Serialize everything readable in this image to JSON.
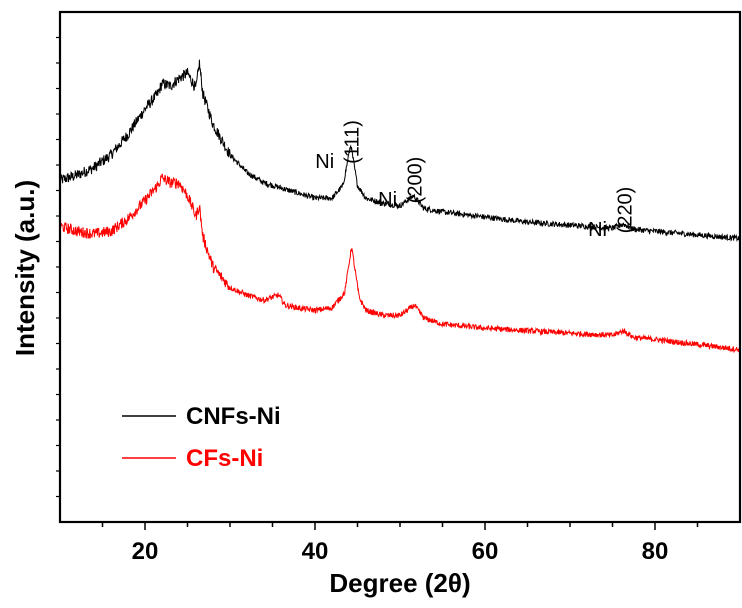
{
  "chart_data": {
    "type": "line",
    "xlabel": "Degree (2θ)",
    "ylabel": "Intensity (a.u.)",
    "xlim": [
      10,
      90
    ],
    "ylim": [
      0,
      100
    ],
    "y_ticks_labeled": false,
    "x_ticks": [
      20,
      40,
      60,
      80
    ],
    "x_tick_labels": [
      "20",
      "40",
      "60",
      "80"
    ],
    "legend": {
      "placement": "bottom-left"
    },
    "series": [
      {
        "name": "CNFs-Ni",
        "color": "#000000",
        "points": [
          [
            10,
            67
          ],
          [
            12,
            68
          ],
          [
            14,
            69.5
          ],
          [
            16,
            72
          ],
          [
            18,
            76
          ],
          [
            20,
            81
          ],
          [
            21.5,
            84
          ],
          [
            22,
            86
          ],
          [
            23,
            85.5
          ],
          [
            24,
            87
          ],
          [
            25,
            88
          ],
          [
            26,
            85
          ],
          [
            26.4,
            90
          ],
          [
            26.8,
            84
          ],
          [
            28,
            78
          ],
          [
            30,
            72
          ],
          [
            32,
            68.5
          ],
          [
            34,
            66.5
          ],
          [
            36,
            65.5
          ],
          [
            38,
            64.5
          ],
          [
            40,
            63.5
          ],
          [
            42,
            63.5
          ],
          [
            43.3,
            66
          ],
          [
            44.2,
            74
          ],
          [
            45,
            66
          ],
          [
            46,
            63.5
          ],
          [
            48,
            62.5
          ],
          [
            50,
            62
          ],
          [
            51.6,
            64
          ],
          [
            52.8,
            61.5
          ],
          [
            55,
            60.8
          ],
          [
            60,
            59.8
          ],
          [
            65,
            58.8
          ],
          [
            70,
            58.2
          ],
          [
            75,
            57.6
          ],
          [
            76.3,
            58.4
          ],
          [
            77.5,
            57.4
          ],
          [
            80,
            57
          ],
          [
            85,
            56.3
          ],
          [
            90,
            55.6
          ]
        ]
      },
      {
        "name": "CFs-Ni",
        "color": "#ff0000",
        "points": [
          [
            10,
            58
          ],
          [
            12,
            57
          ],
          [
            14,
            56.5
          ],
          [
            16,
            57
          ],
          [
            18,
            59.5
          ],
          [
            20,
            63
          ],
          [
            21.5,
            66
          ],
          [
            22,
            67.5
          ],
          [
            23,
            66.5
          ],
          [
            24,
            66.5
          ],
          [
            25,
            64
          ],
          [
            26,
            60
          ],
          [
            26.4,
            62
          ],
          [
            26.8,
            56
          ],
          [
            28,
            50
          ],
          [
            30,
            46
          ],
          [
            32,
            44.5
          ],
          [
            34,
            43.5
          ],
          [
            35.7,
            44.5
          ],
          [
            36.5,
            42.5
          ],
          [
            38,
            42
          ],
          [
            40,
            41.5
          ],
          [
            42,
            42
          ],
          [
            43.5,
            45
          ],
          [
            44.3,
            54
          ],
          [
            45.2,
            44
          ],
          [
            46,
            41.5
          ],
          [
            48,
            40.5
          ],
          [
            50,
            40.5
          ],
          [
            51.7,
            42.5
          ],
          [
            52.8,
            40
          ],
          [
            55,
            38.8
          ],
          [
            60,
            38
          ],
          [
            65,
            37.5
          ],
          [
            70,
            37
          ],
          [
            75,
            36.6
          ],
          [
            76.3,
            37.5
          ],
          [
            77.5,
            36.2
          ],
          [
            80,
            35.8
          ],
          [
            85,
            34.8
          ],
          [
            90,
            33.8
          ]
        ]
      }
    ],
    "annotations": [
      {
        "element": "Ni",
        "hkl": "(111)",
        "x": 44.2
      },
      {
        "element": "Ni",
        "hkl": "(200)",
        "x": 51.6
      },
      {
        "element": "Ni",
        "hkl": "(220)",
        "x": 76.3
      }
    ]
  }
}
